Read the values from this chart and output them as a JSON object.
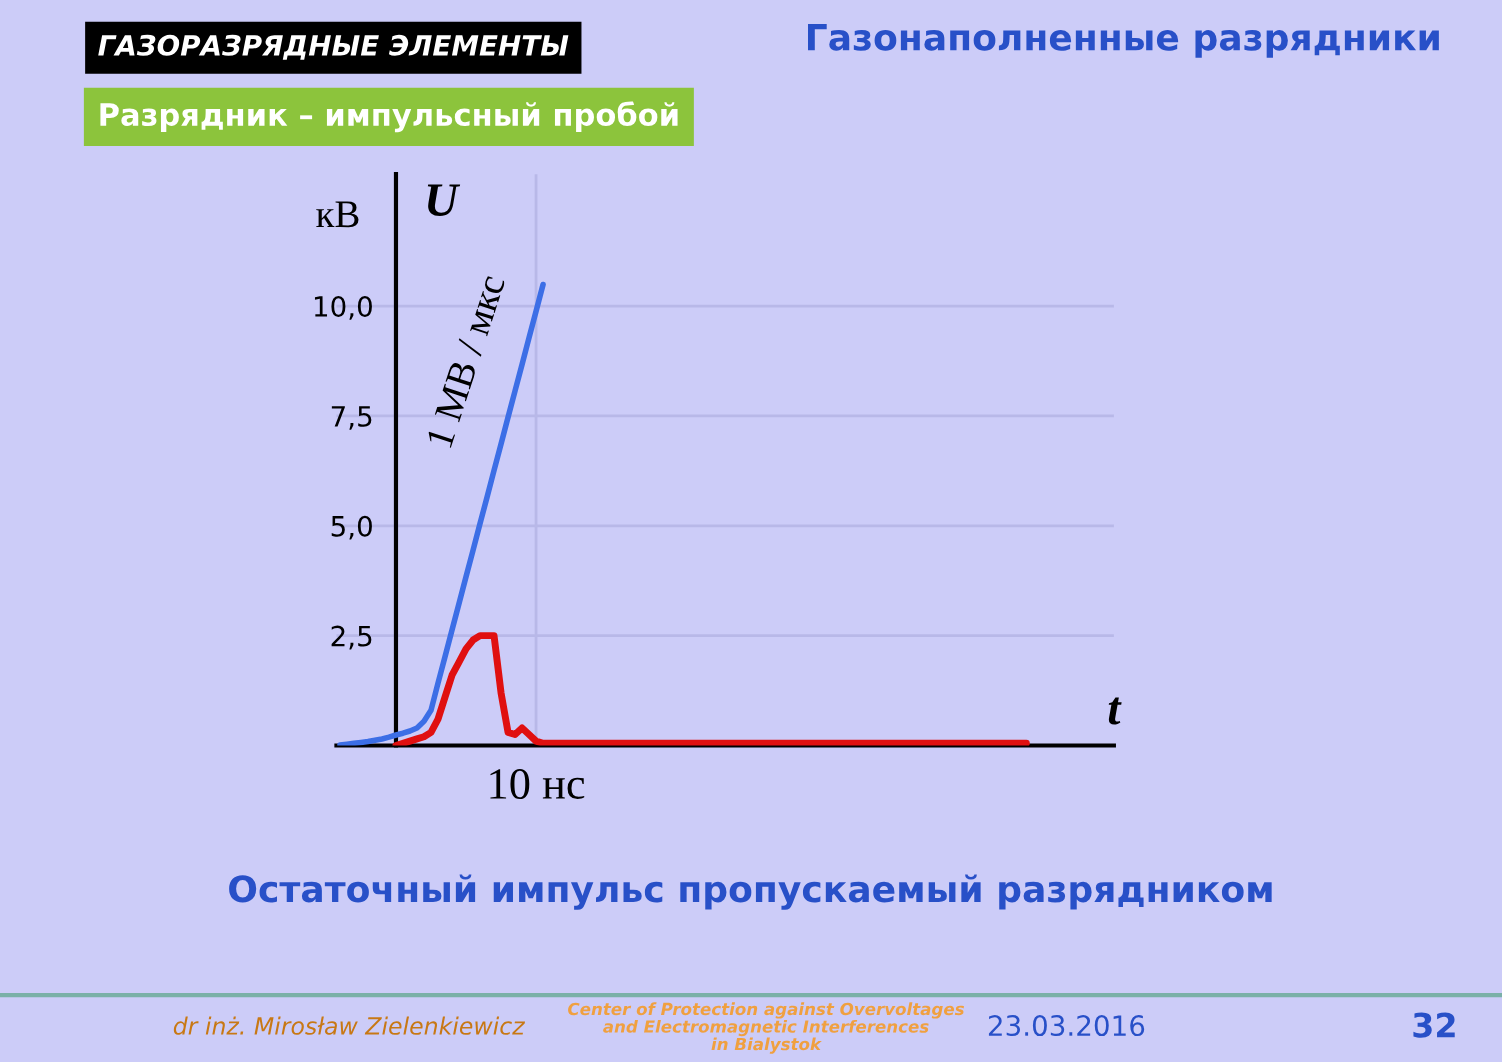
{
  "chart_data": {
    "type": "line",
    "title": "Газонаполненные разрядники",
    "subtitle": "Разрядник – импульсный пробой",
    "xlabel": "t",
    "ylabel": "U",
    "annotations": [
      "ГАЗОРАЗРЯДНЫЕ ЭЛЕМЕНТЫ",
      "кВ",
      "1 МВ / мкс",
      "Остаточный импульс пропускаемый разрядником",
      "dr inż. Mirosław Zielenkiewicz",
      "Center of Protection against Overvoltages\nand Electromagnetic Interferences\nin Bialystok",
      "23.03.2016",
      "32"
    ],
    "categories": [
      null,
      null,
      null,
      null,
      null,
      null,
      null,
      null,
      null,
      null,
      null,
      null,
      null,
      null,
      null,
      null,
      null,
      null,
      null,
      null,
      null,
      null,
      null,
      null,
      null,
      null,
      null,
      null,
      "10 нс",
      null,
      null,
      null,
      null,
      null,
      null,
      null,
      null,
      null,
      null,
      null,
      null,
      null,
      null,
      null,
      null,
      null,
      null,
      null,
      null,
      null,
      null,
      null,
      null,
      null,
      null,
      null,
      null,
      null,
      null,
      null,
      null,
      null,
      null,
      null,
      null,
      null,
      null,
      null,
      null,
      null,
      null,
      null,
      null,
      null,
      null,
      null,
      null,
      null,
      null,
      null,
      null,
      null,
      null,
      null,
      null,
      null,
      null,
      null,
      null,
      null,
      null,
      null,
      null,
      null,
      null,
      null,
      null,
      null,
      null,
      null,
      null,
      null,
      null,
      null,
      null,
      null,
      null,
      null,
      null,
      null,
      null
    ],
    "series": [
      {
        "color": "#3c6ee6",
        "values": [
          0.01,
          0.03,
          0.05,
          0.07,
          0.09,
          0.12,
          0.15,
          0.19,
          0.24,
          0.28,
          0.33,
          0.4,
          0.55,
          0.8,
          1.42,
          2.02,
          2.63,
          3.23,
          3.84,
          4.44,
          5.05,
          5.65,
          6.26,
          6.86,
          7.47,
          8.07,
          8.67,
          9.28,
          9.88,
          10.49,
          null,
          null,
          null,
          null,
          null,
          null,
          null,
          null,
          null,
          null,
          null,
          null,
          null,
          null,
          null,
          null,
          null,
          null,
          null,
          null,
          null,
          null,
          null,
          null,
          null,
          null,
          null,
          null,
          null,
          null,
          null,
          null,
          null,
          null,
          null,
          null,
          null,
          null,
          null,
          null,
          null,
          null,
          null,
          null,
          null,
          null,
          null,
          null,
          null,
          null,
          null,
          null,
          null,
          null,
          null,
          null,
          null,
          null,
          null,
          null,
          null,
          null,
          null,
          null,
          null,
          null,
          null,
          null,
          null,
          null,
          null,
          null,
          null,
          null,
          null,
          null,
          null,
          null,
          null,
          null,
          null
        ]
      },
      {
        "color": "#e01010",
        "values": [
          null,
          null,
          null,
          null,
          null,
          null,
          null,
          null,
          0,
          0.05,
          0.1,
          0.15,
          0.2,
          0.3,
          0.6,
          1.1,
          1.6,
          1.9,
          2.2,
          2.4,
          2.5,
          2.5,
          2.5,
          1.2,
          0.3,
          0.25,
          0.4,
          0.25,
          0.1,
          0.05,
          0.05,
          0.05,
          0.05,
          0.05,
          0.05,
          0.05,
          0.05,
          0.05,
          0.05,
          0.05,
          0.05,
          0.05,
          0.05,
          0.05,
          0.05,
          0.05,
          0.05,
          0.05,
          0.05,
          0.05,
          0.05,
          0.05,
          0.05,
          0.05,
          0.05,
          0.05,
          0.05,
          0.05,
          0.05,
          0.05,
          0.05,
          0.05,
          0.05,
          0.05,
          0.05,
          0.05,
          0.05,
          0.05,
          0.05,
          0.05,
          0.05,
          0.05,
          0.05,
          0.05,
          0.05,
          0.05,
          0.05,
          0.05,
          0.05,
          0.05,
          0.05,
          0.05,
          0.05,
          0.05,
          0.05,
          0.05,
          0.05,
          0.05,
          0.05,
          0.05,
          0.05,
          0.05,
          0.05,
          0.05,
          0.05,
          0.05,
          0.05,
          0.05,
          0.05,
          null,
          null,
          null,
          null,
          null,
          null,
          null,
          null,
          null,
          null,
          null,
          null
        ]
      }
    ],
    "ylim": [
      0,
      13
    ],
    "yticks": [
      {
        "value": 2.5,
        "label": "2,5"
      },
      {
        "value": 5,
        "label": "5,0"
      },
      {
        "value": 7.5,
        "label": "7,5"
      },
      {
        "value": 10,
        "label": "10,0"
      }
    ],
    "grid": true
  }
}
